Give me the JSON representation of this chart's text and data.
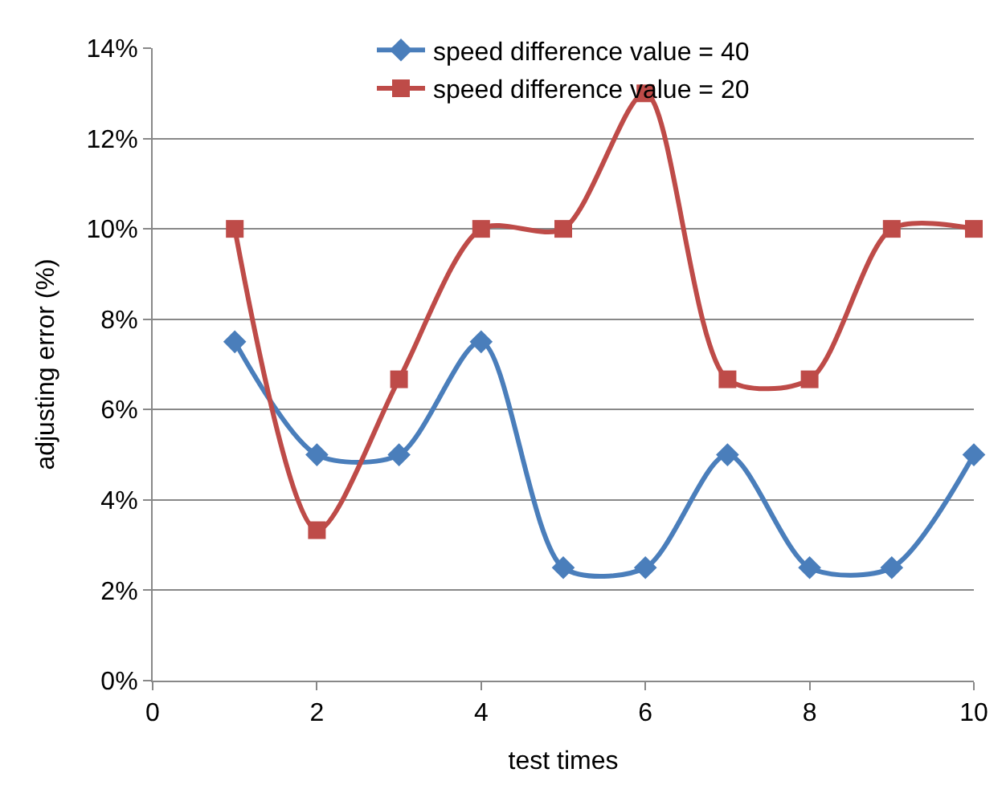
{
  "chart_data": {
    "type": "line",
    "xlabel": "test times",
    "ylabel": "adjusting error (%)",
    "x": [
      1,
      2,
      3,
      4,
      5,
      6,
      7,
      8,
      9,
      10
    ],
    "series": [
      {
        "name": "speed difference value = 40",
        "color": "#4a7ebb",
        "values": [
          7.5,
          5,
          5,
          7.5,
          2.5,
          2.5,
          5,
          2.5,
          2.5,
          5
        ],
        "marker": "diamond"
      },
      {
        "name": "speed difference value = 20",
        "color": "#be4b48",
        "values": [
          10,
          3.33,
          6.67,
          10,
          10,
          13,
          6.67,
          6.67,
          10,
          10
        ],
        "marker": "square"
      }
    ],
    "xlim": [
      0,
      10
    ],
    "xticks": [
      0,
      2,
      4,
      6,
      8,
      10
    ],
    "ylim": [
      0,
      14
    ],
    "yticks": [
      {
        "value": 0,
        "label": "0%"
      },
      {
        "value": 2,
        "label": "2%"
      },
      {
        "value": 4,
        "label": "4%"
      },
      {
        "value": 6,
        "label": "6%"
      },
      {
        "value": 8,
        "label": "8%"
      },
      {
        "value": 10,
        "label": "10%"
      },
      {
        "value": 12,
        "label": "12%"
      },
      {
        "value": 14,
        "label": "14%"
      }
    ],
    "grid": "y",
    "legend": "top",
    "line_style": "solid"
  }
}
